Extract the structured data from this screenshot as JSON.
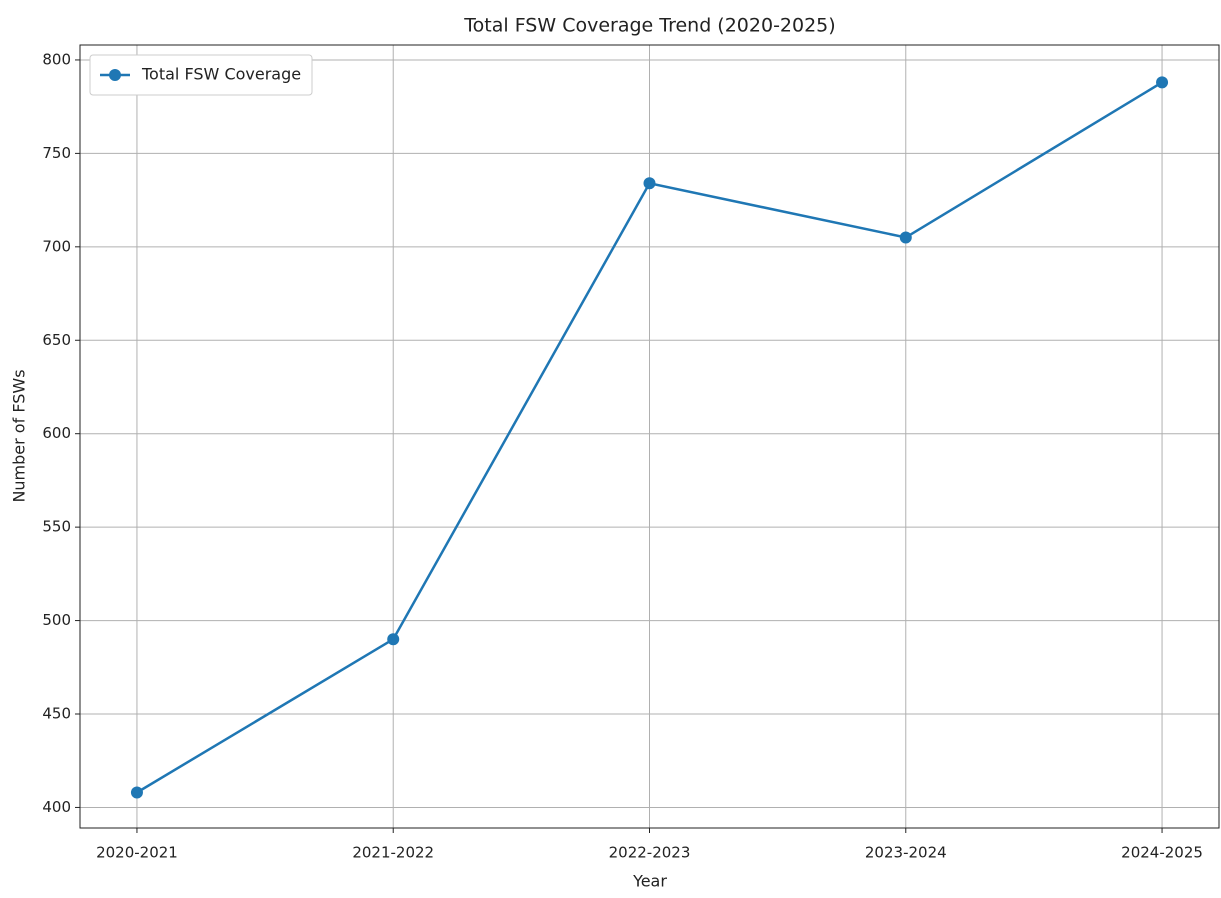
{
  "chart_data": {
    "type": "line",
    "title": "Total FSW Coverage Trend (2020-2025)",
    "x_label": "Year",
    "y_label": "Number of FSWs",
    "categories": [
      "2020-2021",
      "2021-2022",
      "2022-2023",
      "2023-2024",
      "2024-2025"
    ],
    "series": [
      {
        "name": "Total FSW Coverage",
        "color": "#1f77b4",
        "values": [
          408,
          490,
          734,
          705,
          788
        ]
      }
    ],
    "ylim": [
      389,
      808
    ],
    "yticks": [
      400,
      450,
      500,
      550,
      600,
      650,
      700,
      750,
      800
    ],
    "grid": true,
    "legend": "upper left"
  }
}
